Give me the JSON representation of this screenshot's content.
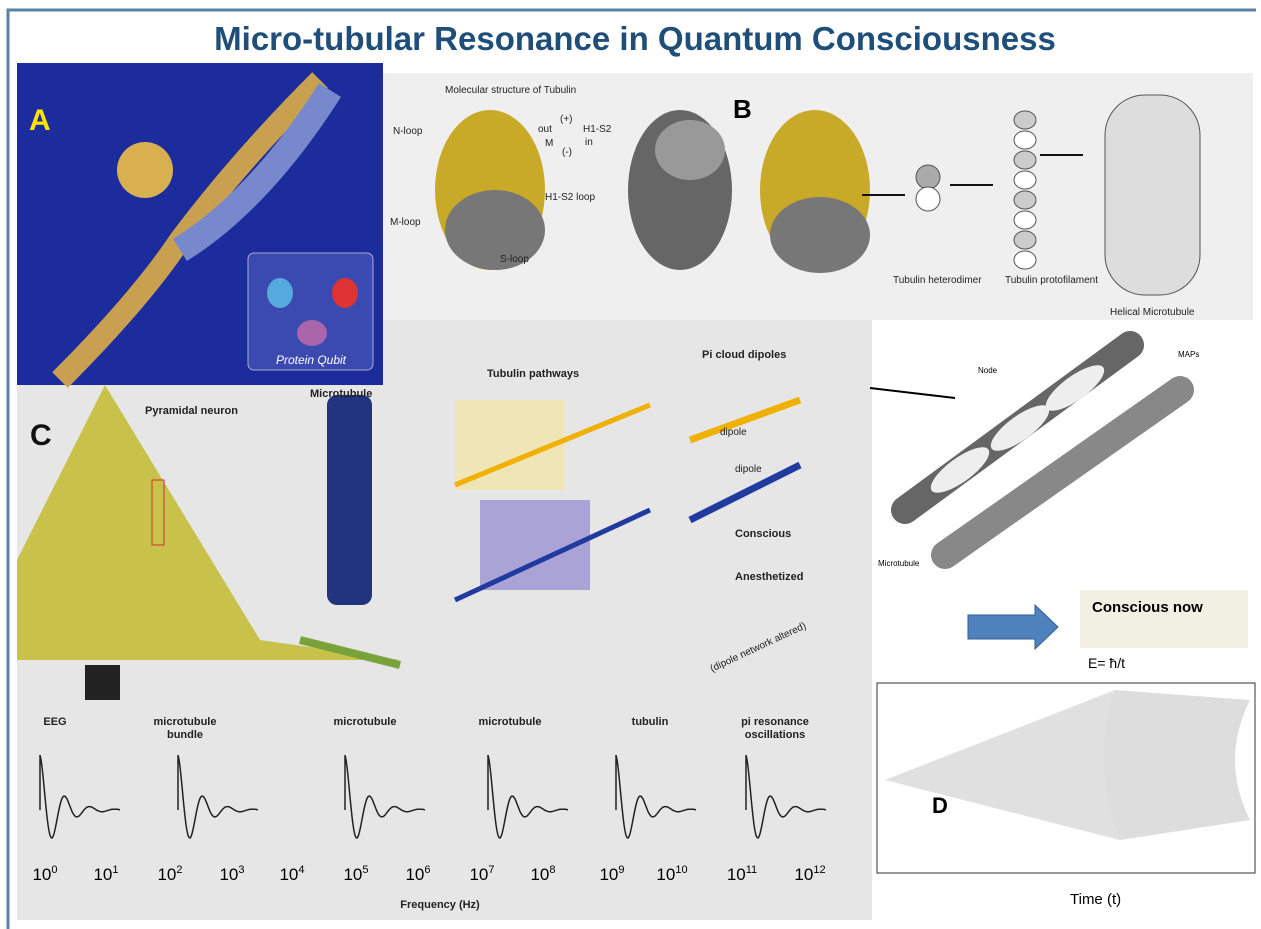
{
  "title": "Micro-tubular Resonance in Quantum Consciousness",
  "panel_a": {
    "letter": "A",
    "caption": "Protein Qubit"
  },
  "panel_b": {
    "letter": "B",
    "heading": "Molecular structure of Tubulin",
    "labels": [
      "N-loop",
      "M-loop",
      "S-loop",
      "H1-S2 loop"
    ],
    "axes": [
      "(+)",
      "(-)",
      "out",
      "in",
      "M",
      "H1-S2"
    ],
    "stages": [
      "Tubulin heterodimer",
      "Tubulin protofilament",
      "Helical Microtubule"
    ]
  },
  "panel_c": {
    "letter": "C",
    "neuron": "Pyramidal neuron",
    "microtubule": "Microtubule",
    "pathways": "Tubulin pathways",
    "pi_heading": "Pi cloud dipoles",
    "dipole_top": "dipole",
    "dipole_bottom": "dipole",
    "conscious": "Conscious",
    "anesthetized": "Anesthetized",
    "altered": "(dipole network altered)",
    "node": "Node",
    "maps": "MAPs",
    "mt_label": "Microtubule"
  },
  "panel_d": {
    "letter": "D",
    "box": "Conscious now",
    "equation": "E= ħ/t",
    "xlabel": "Time (t)"
  },
  "spectrum": {
    "headers": [
      "EEG",
      "microtubule bundle",
      "microtubule",
      "microtubule",
      "tubulin",
      "pi resonance oscillations"
    ],
    "ticks": [
      {
        "base": "10",
        "exp": "0"
      },
      {
        "base": "10",
        "exp": "1"
      },
      {
        "base": "10",
        "exp": "2"
      },
      {
        "base": "10",
        "exp": "3"
      },
      {
        "base": "10",
        "exp": "4"
      },
      {
        "base": "10",
        "exp": "5"
      },
      {
        "base": "10",
        "exp": "6"
      },
      {
        "base": "10",
        "exp": "7"
      },
      {
        "base": "10",
        "exp": "8"
      },
      {
        "base": "10",
        "exp": "9"
      },
      {
        "base": "10",
        "exp": "10"
      },
      {
        "base": "10",
        "exp": "11"
      },
      {
        "base": "10",
        "exp": "12"
      }
    ],
    "xlabel": "Frequency (Hz)"
  }
}
